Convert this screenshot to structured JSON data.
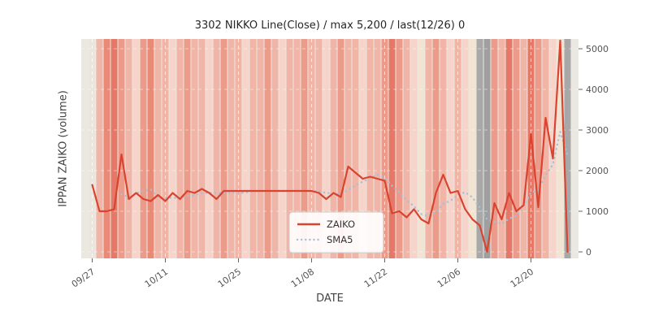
{
  "chart_data": {
    "type": "line",
    "title": "3302 NIKKO Line(Close) / max 5,200 / last(12/26) 0",
    "xlabel": "DATE",
    "ylabel": "IPPAN ZAIKO (volume)",
    "grid": "white-dashed",
    "legend_position": "center-bottom",
    "ylim": [
      -160,
      5240
    ],
    "y_ticks": [
      0,
      1000,
      2000,
      3000,
      4000,
      5000
    ],
    "x_ticks": [
      {
        "index": 0,
        "label": "09/27"
      },
      {
        "index": 10,
        "label": "10/11"
      },
      {
        "index": 20,
        "label": "10/25"
      },
      {
        "index": 30,
        "label": "11/08"
      },
      {
        "index": 40,
        "label": "11/22"
      },
      {
        "index": 50,
        "label": "12/06"
      },
      {
        "index": 60,
        "label": "12/20"
      }
    ],
    "series": [
      {
        "name": "ZAIKO",
        "color": "#d9432f",
        "style": "solid",
        "values": [
          1650,
          1000,
          1000,
          1050,
          2400,
          1300,
          1450,
          1300,
          1250,
          1400,
          1250,
          1450,
          1300,
          1500,
          1450,
          1550,
          1450,
          1300,
          1500,
          1500,
          1500,
          1500,
          1500,
          1500,
          1500,
          1500,
          1500,
          1500,
          1500,
          1500,
          1500,
          1450,
          1300,
          1450,
          1350,
          2100,
          1950,
          1800,
          1850,
          1800,
          1750,
          950,
          1000,
          850,
          1050,
          800,
          700,
          1450,
          1900,
          1450,
          1500,
          1050,
          800,
          650,
          0,
          1200,
          800,
          1450,
          1000,
          1150,
          2900,
          1100,
          3300,
          2300,
          5200,
          0
        ]
      },
      {
        "name": "SMA5",
        "color": "#a2c0d9",
        "style": "dotted",
        "derived": "moving-average-5-of-ZAIKO"
      }
    ],
    "plot_bg_color": "#ebe8e2",
    "bands": [
      "#eae6dd",
      "#f0b5a6",
      "#e98a77",
      "#e57866",
      "#ec9b8a",
      "#f0b5a6",
      "#f6d4c9",
      "#ec9b8a",
      "#e98a77",
      "#f0b5a6",
      "#f0b5a6",
      "#f6d4c9",
      "#f0b5a6",
      "#ec9b8a",
      "#f0b5a6",
      "#f0b5a6",
      "#f6d4c9",
      "#f0b5a6",
      "#ec9b8a",
      "#f0b5a6",
      "#f0b5a6",
      "#f6d4c9",
      "#f0b5a6",
      "#f0b5a6",
      "#ec9b8a",
      "#f0b5a6",
      "#f6d4c9",
      "#f0b5a6",
      "#f0b5a6",
      "#ec9b8a",
      "#f0b5a6",
      "#f0b5a6",
      "#f6d4c9",
      "#f0b5a6",
      "#ec9b8a",
      "#f0b5a6",
      "#f0b5a6",
      "#f6d4c9",
      "#f0b5a6",
      "#f0b5a6",
      "#ec9b8a",
      "#e57866",
      "#ec9b8a",
      "#f0b5a6",
      "#f6d4c9",
      "#f1e4d3",
      "#f0b5a6",
      "#ec9b8a",
      "#f0b5a6",
      "#f6d4c9",
      "#f0b5a6",
      "#f6d4c9",
      "#f1e4d3",
      "#a8a8a8",
      "#9f9f9f",
      "#ec9b8a",
      "#f0b5a6",
      "#e57866",
      "#ec9b8a",
      "#f0b5a6",
      "#e57866",
      "#ec9b8a",
      "#f0b5a6",
      "#f6d4c9",
      "#f1e4d3",
      "#a8a8a8"
    ]
  }
}
